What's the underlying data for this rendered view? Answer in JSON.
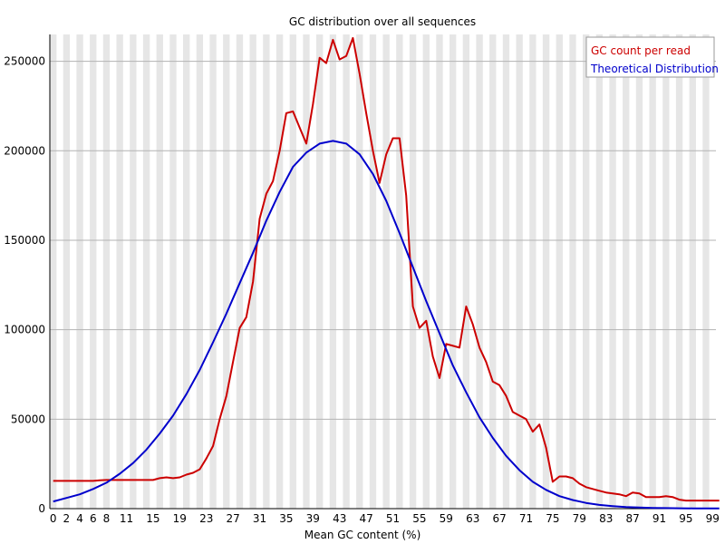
{
  "chart_data": {
    "type": "line",
    "title": "GC distribution over all sequences",
    "xlabel": "Mean GC content (%)",
    "ylabel": "",
    "xlim": [
      0,
      100
    ],
    "ylim": [
      0,
      265000
    ],
    "grid": true,
    "legend_position": "top-right",
    "x_tick_labels": [
      "0",
      "2",
      "4",
      "6",
      "8",
      "11",
      "15",
      "19",
      "23",
      "27",
      "31",
      "35",
      "39",
      "43",
      "47",
      "51",
      "55",
      "59",
      "63",
      "67",
      "71",
      "75",
      "79",
      "83",
      "87",
      "91",
      "95",
      "99"
    ],
    "y_ticks": [
      0,
      50000,
      100000,
      150000,
      200000,
      250000
    ],
    "y_tick_labels": [
      "0",
      "50000",
      "100000",
      "150000",
      "200000",
      "250000"
    ],
    "series": [
      {
        "name": "GC count per read",
        "color": "#cc0000",
        "x": [
          0,
          1,
          2,
          3,
          4,
          5,
          6,
          7,
          8,
          9,
          10,
          11,
          12,
          13,
          14,
          15,
          16,
          17,
          18,
          19,
          20,
          21,
          22,
          23,
          24,
          25,
          26,
          27,
          28,
          29,
          30,
          31,
          32,
          33,
          34,
          35,
          36,
          37,
          38,
          39,
          40,
          41,
          42,
          43,
          44,
          45,
          46,
          47,
          48,
          49,
          50,
          51,
          52,
          53,
          54,
          55,
          56,
          57,
          58,
          59,
          60,
          61,
          62,
          63,
          64,
          65,
          66,
          67,
          68,
          69,
          70,
          71,
          72,
          73,
          74,
          75,
          76,
          77,
          78,
          79,
          80,
          81,
          82,
          83,
          84,
          85,
          86,
          87,
          88,
          89,
          90,
          91,
          92,
          93,
          94,
          95,
          96,
          97,
          98,
          99,
          100
        ],
        "values": [
          15500,
          15500,
          15500,
          15500,
          15500,
          15500,
          15500,
          15800,
          16000,
          16000,
          16000,
          16000,
          16000,
          16000,
          16000,
          16000,
          17000,
          17500,
          17000,
          17500,
          19000,
          20000,
          22000,
          28000,
          35000,
          50000,
          63000,
          82000,
          101000,
          107000,
          127000,
          162000,
          176000,
          183000,
          200000,
          221000,
          222000,
          213000,
          204000,
          226000,
          252000,
          249000,
          262000,
          251000,
          253000,
          263000,
          243000,
          221000,
          200000,
          182000,
          198000,
          207000,
          207000,
          175000,
          113000,
          101000,
          105000,
          85000,
          73000,
          92000,
          91000,
          90000,
          113000,
          103000,
          90000,
          82000,
          71000,
          69000,
          63000,
          54000,
          52000,
          50000,
          43000,
          47000,
          34000,
          15000,
          18000,
          18000,
          17000,
          14000,
          12000,
          11000,
          10000,
          9000,
          8500,
          8000,
          7000,
          9000,
          8500,
          6500,
          6500,
          6500,
          7000,
          6500,
          5000,
          4500,
          4500,
          4500,
          4500,
          4500,
          4500
        ]
      },
      {
        "name": "Theoretical Distribution",
        "color": "#0000cc",
        "x": [
          0,
          2,
          4,
          6,
          8,
          10,
          12,
          14,
          16,
          18,
          20,
          22,
          24,
          26,
          28,
          30,
          32,
          34,
          36,
          38,
          40,
          42,
          44,
          46,
          48,
          50,
          52,
          54,
          56,
          58,
          60,
          62,
          64,
          66,
          68,
          70,
          72,
          74,
          76,
          78,
          80,
          82,
          84,
          86,
          88,
          90,
          92,
          94,
          96,
          98,
          100
        ],
        "values": [
          4000,
          6000,
          8000,
          11000,
          14500,
          19500,
          25500,
          33000,
          42000,
          52000,
          64000,
          77500,
          93000,
          109000,
          126000,
          143000,
          161000,
          177000,
          191000,
          199000,
          204000,
          205500,
          204000,
          198000,
          187000,
          172000,
          154000,
          135000,
          116000,
          98000,
          80000,
          65000,
          51000,
          39500,
          29500,
          21500,
          15000,
          10500,
          7000,
          4800,
          3200,
          2100,
          1400,
          900,
          600,
          400,
          300,
          200,
          150,
          100,
          100
        ]
      }
    ]
  }
}
